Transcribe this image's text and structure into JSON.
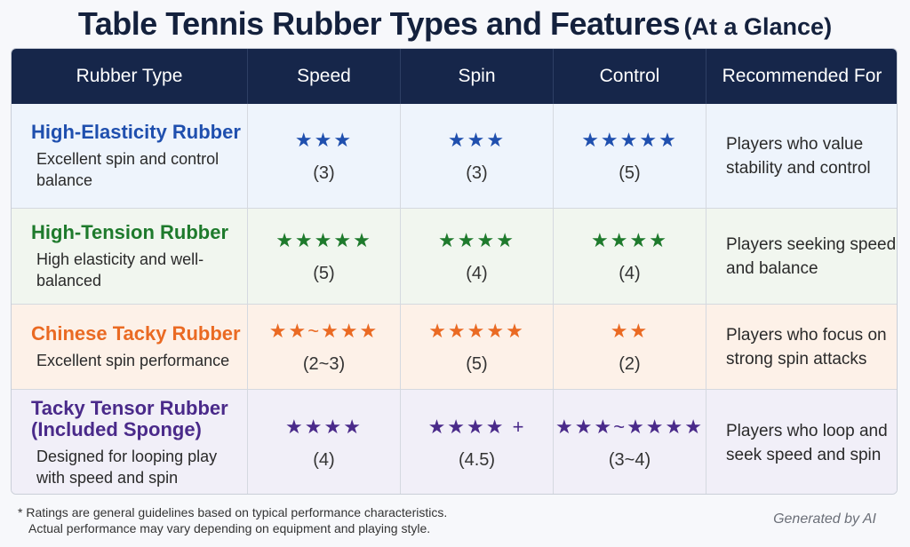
{
  "title": {
    "main": "Table Tennis Rubber Types and Features",
    "sub": "(At a Glance)"
  },
  "headers": [
    "Rubber Type",
    "Speed",
    "Spin",
    "Control",
    "Recommended For"
  ],
  "rows": [
    {
      "name": "High-Elasticity Rubber",
      "desc": "Excellent spin and control balance",
      "color": "#1f4fae",
      "speed": {
        "stars": "★★★",
        "rating": "(3)"
      },
      "spin": {
        "stars": "★★★",
        "rating": "(3)"
      },
      "control": {
        "stars": "★★★★★",
        "rating": "(5)"
      },
      "recommended": "Players who value stability and control"
    },
    {
      "name": "High-Tension Rubber",
      "desc": "High elasticity and well-balanced",
      "color": "#1e7a2c",
      "speed": {
        "stars": "★★★★★",
        "rating": "(5)"
      },
      "spin": {
        "stars": "★★★★",
        "rating": "(4)"
      },
      "control": {
        "stars": "★★★★",
        "rating": "(4)"
      },
      "recommended": "Players seeking speed and balance"
    },
    {
      "name": "Chinese Tacky Rubber",
      "desc": "Excellent spin performance",
      "color": "#ea6a23",
      "speed": {
        "stars": "★★~★★★",
        "rating": "(2~3)"
      },
      "spin": {
        "stars": "★★★★★",
        "rating": "(5)"
      },
      "control": {
        "stars": "★★",
        "rating": "(2)"
      },
      "recommended": "Players who focus on strong spin attacks"
    },
    {
      "name": "Tacky Tensor Rubber (Included Sponge)",
      "desc": "Designed for looping play with speed and spin",
      "color": "#4a2a8a",
      "speed": {
        "stars": "★★★★",
        "rating": "(4)"
      },
      "spin": {
        "stars": "★★★★ +",
        "rating": "(4.5)"
      },
      "control": {
        "stars": "★★★~★★★★",
        "rating": "(3~4)"
      },
      "recommended": "Players who loop and seek speed and spin"
    }
  ],
  "footnote": {
    "line1": "* Ratings are general guidelines based on typical performance characteristics.",
    "line2": "Actual performance may vary depending on equipment and playing style."
  },
  "generated": "Generated by AI"
}
